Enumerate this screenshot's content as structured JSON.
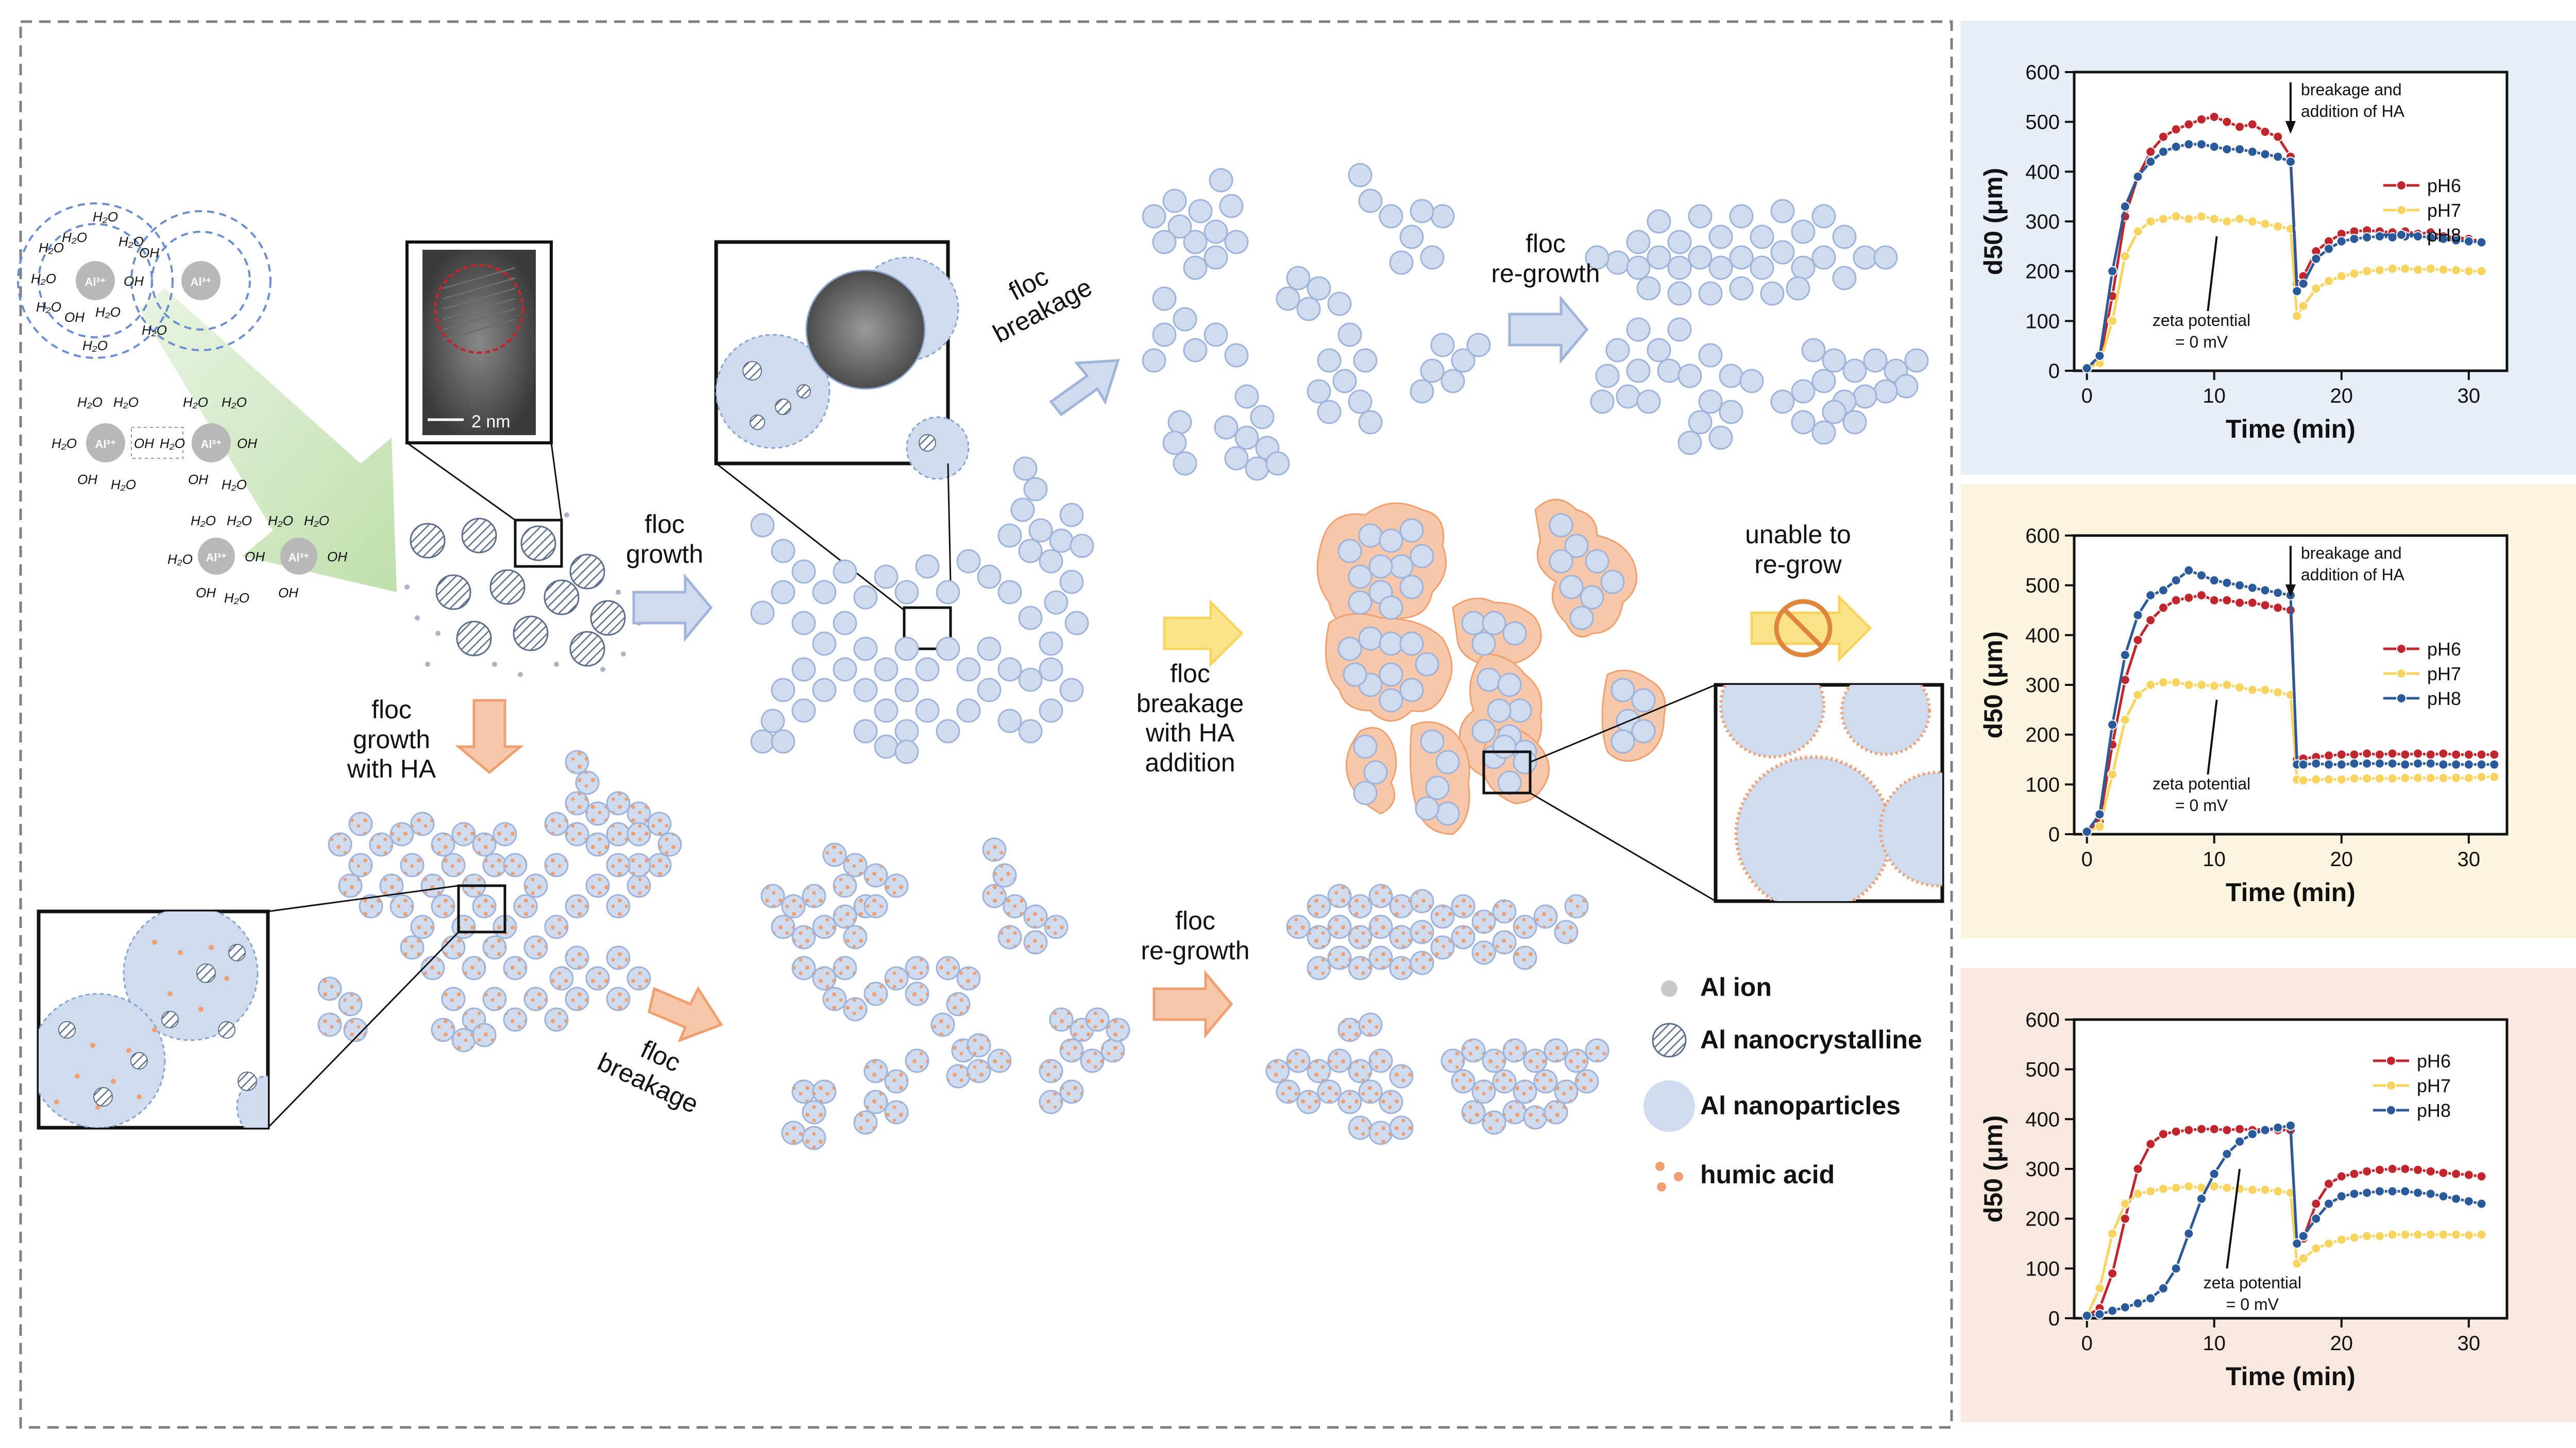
{
  "colors": {
    "floc_blue": "#cfdcf0",
    "floc_blue_stroke": "#9fb4d8",
    "ha_orange": "#f0a070",
    "arrow_blue": "#b9cbe8",
    "arrow_orange": "#f6c7a8",
    "arrow_yellow": "#fbe38c",
    "panel1_bg": "#e8eef8",
    "panel2_bg": "#fdf4df",
    "panel3_bg": "#f8e8e0",
    "pH6": "#c0262e",
    "pH7": "#f7d460",
    "pH8": "#2b5a9a"
  },
  "diagram": {
    "ion_labels": {
      "al": "Al³⁺",
      "h2o": "H₂O",
      "oh": "OH"
    },
    "tem_scale": "2 nm",
    "floc_growth": "floc\ngrowth",
    "floc_breakage_top": "floc\nbreakage",
    "floc_regrowth_top": "floc\nre-growth",
    "floc_breakage_ha": "floc\nbreakage\nwith HA\naddition",
    "unable_regrow": "unable to\nre-grow",
    "floc_growth_ha": "floc\ngrowth\nwith HA",
    "floc_breakage_bottom": "floc\nbreakage",
    "floc_regrowth_bottom": "floc\nre-growth",
    "legend": [
      {
        "icon": "al-ion-icon",
        "label": "Al ion"
      },
      {
        "icon": "al-nanocrystalline-icon",
        "label": "Al nanocrystalline"
      },
      {
        "icon": "al-nanoparticles-icon",
        "label": "Al nanoparticles"
      },
      {
        "icon": "humic-acid-icon",
        "label": "humic acid"
      }
    ]
  },
  "chart_data": [
    {
      "type": "line",
      "xlabel": "Time (min)",
      "ylabel": "d50 (μm)",
      "xlim": [
        -1,
        33
      ],
      "ylim": [
        0,
        600
      ],
      "xticks": [
        0,
        10,
        20,
        30
      ],
      "yticks": [
        0,
        100,
        200,
        300,
        400,
        500,
        600
      ],
      "annotations": [
        "breakage and\naddition of HA",
        "zeta potential\n= 0 mV"
      ],
      "legend_position": "right",
      "x": [
        0,
        1,
        2,
        3,
        4,
        5,
        6,
        7,
        8,
        9,
        10,
        11,
        12,
        13,
        14,
        15,
        16,
        16.5,
        17,
        18,
        19,
        20,
        21,
        22,
        23,
        24,
        25,
        26,
        27,
        28,
        29,
        30,
        31
      ],
      "series": [
        {
          "name": "pH6",
          "values": [
            5,
            20,
            150,
            310,
            390,
            440,
            470,
            485,
            495,
            505,
            510,
            500,
            490,
            495,
            480,
            470,
            430,
            175,
            190,
            240,
            260,
            275,
            280,
            282,
            280,
            278,
            280,
            275,
            278,
            270,
            268,
            265,
            260
          ]
        },
        {
          "name": "pH7",
          "values": [
            5,
            15,
            100,
            230,
            280,
            300,
            305,
            310,
            305,
            310,
            305,
            300,
            305,
            300,
            295,
            290,
            285,
            110,
            130,
            165,
            180,
            190,
            195,
            200,
            202,
            205,
            205,
            203,
            205,
            203,
            202,
            200,
            200
          ]
        },
        {
          "name": "pH8",
          "values": [
            5,
            30,
            200,
            330,
            390,
            420,
            440,
            450,
            455,
            455,
            450,
            445,
            445,
            440,
            435,
            430,
            420,
            160,
            175,
            225,
            245,
            260,
            265,
            268,
            270,
            268,
            270,
            270,
            268,
            265,
            262,
            260,
            258
          ]
        }
      ]
    },
    {
      "type": "line",
      "xlabel": "Time (min)",
      "ylabel": "d50 (μm)",
      "xlim": [
        -1,
        33
      ],
      "ylim": [
        0,
        600
      ],
      "xticks": [
        0,
        10,
        20,
        30
      ],
      "yticks": [
        0,
        100,
        200,
        300,
        400,
        500,
        600
      ],
      "annotations": [
        "breakage and\naddition of HA",
        "zeta potential\n= 0 mV"
      ],
      "legend_position": "right",
      "x": [
        0,
        1,
        2,
        3,
        4,
        5,
        6,
        7,
        8,
        9,
        10,
        11,
        12,
        13,
        14,
        15,
        16,
        16.5,
        17,
        18,
        19,
        20,
        21,
        22,
        23,
        24,
        25,
        26,
        27,
        28,
        29,
        30,
        31,
        32
      ],
      "series": [
        {
          "name": "pH6",
          "values": [
            5,
            25,
            180,
            310,
            390,
            430,
            455,
            470,
            475,
            480,
            470,
            470,
            465,
            465,
            460,
            455,
            450,
            150,
            152,
            155,
            158,
            160,
            160,
            162,
            160,
            162,
            160,
            162,
            160,
            162,
            160,
            160,
            160,
            160
          ]
        },
        {
          "name": "pH7",
          "values": [
            5,
            15,
            120,
            230,
            280,
            300,
            305,
            305,
            300,
            300,
            298,
            300,
            295,
            290,
            290,
            285,
            280,
            110,
            108,
            110,
            110,
            110,
            112,
            112,
            112,
            112,
            113,
            113,
            113,
            113,
            113,
            113,
            115,
            115
          ]
        },
        {
          "name": "pH8",
          "values": [
            5,
            40,
            220,
            360,
            440,
            480,
            490,
            510,
            530,
            520,
            510,
            505,
            500,
            495,
            490,
            485,
            480,
            140,
            140,
            142,
            140,
            140,
            142,
            142,
            142,
            142,
            140,
            142,
            142,
            140,
            140,
            140,
            140,
            140
          ]
        }
      ]
    },
    {
      "type": "line",
      "xlabel": "Time (min)",
      "ylabel": "d50 (μm)",
      "xlim": [
        -1,
        33
      ],
      "ylim": [
        0,
        600
      ],
      "xticks": [
        0,
        10,
        20,
        30
      ],
      "yticks": [
        0,
        100,
        200,
        300,
        400,
        500,
        600
      ],
      "annotations": [
        "zeta potential\n= 0 mV"
      ],
      "legend_position": "top-right",
      "x": [
        0,
        1,
        2,
        3,
        4,
        5,
        6,
        7,
        8,
        9,
        10,
        11,
        12,
        13,
        14,
        15,
        16,
        16.5,
        17,
        18,
        19,
        20,
        21,
        22,
        23,
        24,
        25,
        26,
        27,
        28,
        29,
        30,
        31
      ],
      "series": [
        {
          "name": "pH6",
          "values": [
            5,
            20,
            90,
            200,
            300,
            350,
            370,
            375,
            378,
            380,
            380,
            378,
            380,
            378,
            380,
            378,
            378,
            150,
            160,
            230,
            270,
            285,
            290,
            295,
            298,
            300,
            300,
            298,
            295,
            292,
            290,
            288,
            285
          ]
        },
        {
          "name": "pH7",
          "values": [
            5,
            60,
            170,
            230,
            250,
            255,
            260,
            262,
            265,
            262,
            265,
            262,
            260,
            258,
            258,
            255,
            252,
            110,
            120,
            140,
            150,
            158,
            162,
            165,
            165,
            168,
            168,
            168,
            168,
            168,
            168,
            167,
            168
          ]
        },
        {
          "name": "pH8",
          "values": [
            5,
            8,
            15,
            22,
            30,
            40,
            60,
            100,
            170,
            240,
            290,
            330,
            355,
            370,
            378,
            383,
            387,
            150,
            165,
            200,
            230,
            245,
            250,
            252,
            255,
            255,
            255,
            252,
            250,
            245,
            240,
            235,
            230
          ]
        }
      ]
    }
  ]
}
